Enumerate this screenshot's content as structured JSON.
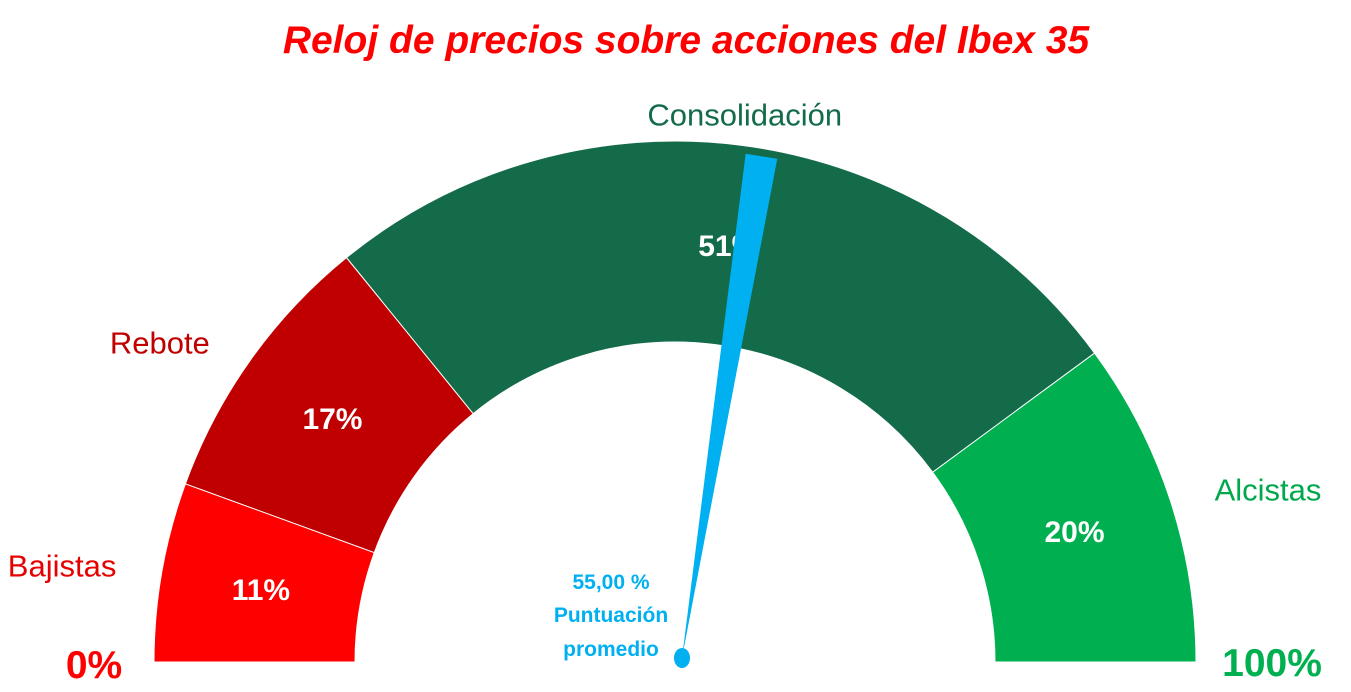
{
  "chart_data": {
    "type": "gauge",
    "title": "Reloj de precios sobre acciones del Ibex 35",
    "range": [
      0,
      100
    ],
    "min_label": "0%",
    "max_label": "100%",
    "segments": [
      {
        "name": "Bajistas",
        "value": 11,
        "label": "11%",
        "color": "#ff0000",
        "name_color": "#e60000"
      },
      {
        "name": "Rebote",
        "value": 17,
        "label": "17%",
        "color": "#c00000",
        "name_color": "#c00000"
      },
      {
        "name": "Consolidación",
        "value": 51,
        "label": "51%",
        "color": "#146b4a",
        "name_color": "#146b4a"
      },
      {
        "name": "Alcistas",
        "value": 20,
        "label": "20%",
        "color": "#00b050",
        "name_color": "#00a84c"
      }
    ],
    "needle": {
      "value": 55.0,
      "value_label": "55,00 %",
      "caption_line1": "Puntuación",
      "caption_line2": "promedio",
      "color": "#00b0f0"
    },
    "colors": {
      "title": "#ff0000",
      "min_label": "#ff0000",
      "max_label": "#00b050"
    }
  }
}
